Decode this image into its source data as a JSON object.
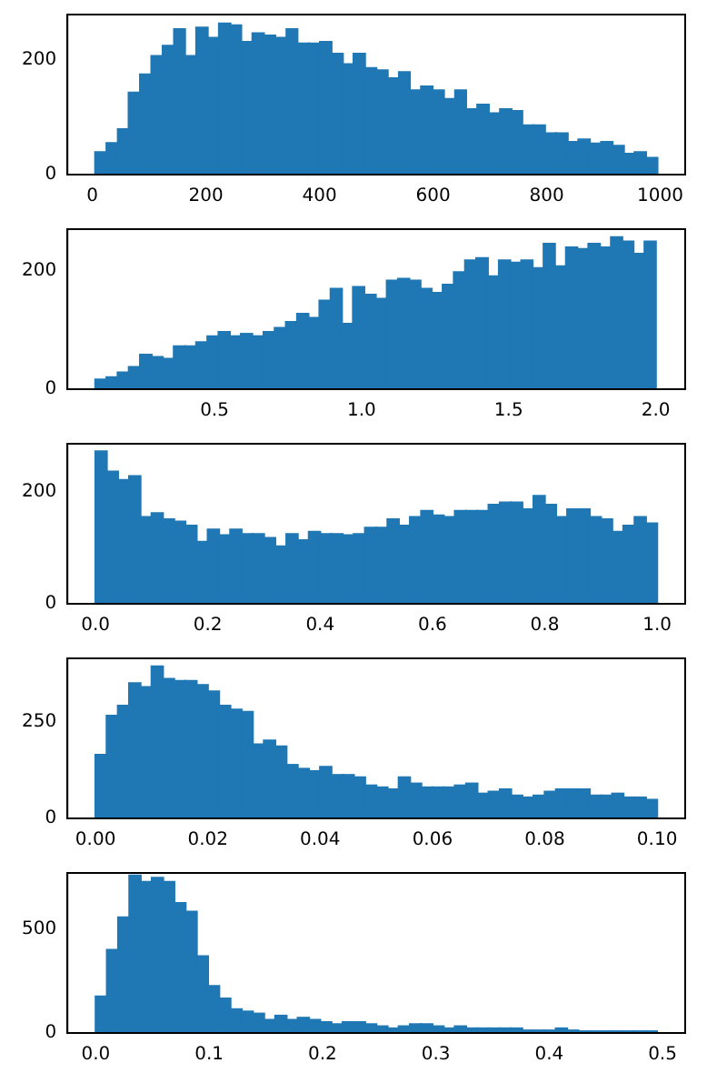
{
  "chart_data": [
    {
      "type": "histogram",
      "color": "#1f77b4",
      "xlim": [
        -44,
        1044
      ],
      "ylim": [
        0,
        280
      ],
      "xticks": [
        0,
        200,
        400,
        600,
        800,
        1000
      ],
      "yticks": [
        0,
        200
      ],
      "bins": [
        5,
        25,
        45,
        64,
        84,
        104,
        124,
        144,
        163,
        183,
        203,
        223,
        243,
        262,
        282,
        302,
        322,
        342,
        361,
        381,
        401,
        421,
        441,
        460,
        480,
        500,
        520,
        540,
        559,
        579,
        599,
        619,
        639,
        658,
        678,
        698,
        718,
        738,
        757,
        777,
        797,
        817,
        837,
        856,
        876,
        896,
        916,
        936,
        955,
        975,
        995
      ],
      "values": [
        40,
        56,
        80,
        144,
        176,
        208,
        226,
        255,
        208,
        258,
        240,
        265,
        262,
        233,
        248,
        244,
        240,
        255,
        230,
        230,
        233,
        212,
        194,
        212,
        187,
        183,
        169,
        180,
        148,
        155,
        148,
        133,
        148,
        115,
        123,
        108,
        115,
        112,
        87,
        87,
        73,
        73,
        58,
        62,
        55,
        58,
        51,
        37,
        40,
        30
      ]
    },
    {
      "type": "histogram",
      "color": "#1f77b4",
      "xlim": [
        0,
        2.1
      ],
      "ylim": [
        0,
        270
      ],
      "xticks": [
        0.5,
        {
          "value": 1,
          "label": "1.0"
        },
        1.5,
        {
          "value": 2,
          "label": "2.0"
        }
      ],
      "yticks": [
        0,
        200
      ],
      "bins": [
        0.095,
        0.133,
        0.171,
        0.209,
        0.247,
        0.286,
        0.324,
        0.362,
        0.4,
        0.438,
        0.476,
        0.514,
        0.552,
        0.59,
        0.628,
        0.667,
        0.705,
        0.743,
        0.781,
        0.819,
        0.857,
        0.895,
        0.933,
        0.971,
        1.009,
        1.048,
        1.086,
        1.124,
        1.162,
        1.2,
        1.238,
        1.276,
        1.314,
        1.352,
        1.39,
        1.429,
        1.467,
        1.505,
        1.543,
        1.581,
        1.619,
        1.657,
        1.695,
        1.733,
        1.771,
        1.81,
        1.848,
        1.886,
        1.924,
        1.962,
        2.0
      ],
      "values": [
        17,
        21,
        29,
        38,
        59,
        55,
        52,
        73,
        73,
        80,
        90,
        97,
        90,
        94,
        90,
        97,
        104,
        114,
        128,
        121,
        150,
        170,
        111,
        173,
        160,
        153,
        184,
        187,
        184,
        170,
        163,
        177,
        198,
        218,
        222,
        191,
        218,
        214,
        218,
        205,
        246,
        208,
        240,
        237,
        246,
        240,
        257,
        250,
        229,
        250
      ]
    },
    {
      "type": "histogram",
      "color": "#1f77b4",
      "xlim": [
        -0.05,
        1.05
      ],
      "ylim": [
        0,
        285
      ],
      "xticks": [
        {
          "value": 0,
          "label": "0.0"
        },
        0.2,
        0.4,
        0.6,
        0.8,
        {
          "value": 1,
          "label": "1.0"
        }
      ],
      "yticks": [
        0,
        200
      ],
      "bins": [
        0,
        0.02,
        0.04,
        0.06,
        0.08,
        0.1,
        0.12,
        0.14,
        0.16,
        0.18,
        0.2,
        0.22,
        0.24,
        0.26,
        0.28,
        0.3,
        0.32,
        0.34,
        0.36,
        0.38,
        0.4,
        0.42,
        0.44,
        0.46,
        0.48,
        0.5,
        0.52,
        0.54,
        0.56,
        0.58,
        0.6,
        0.62,
        0.64,
        0.66,
        0.68,
        0.7,
        0.72,
        0.74,
        0.76,
        0.78,
        0.8,
        0.82,
        0.84,
        0.86,
        0.88,
        0.9,
        0.92,
        0.94,
        0.96,
        0.98,
        1.0
      ],
      "values": [
        272,
        236,
        221,
        228,
        155,
        162,
        151,
        147,
        140,
        111,
        133,
        123,
        133,
        125,
        125,
        118,
        103,
        125,
        114,
        129,
        125,
        125,
        123,
        125,
        136,
        136,
        151,
        140,
        155,
        166,
        158,
        155,
        166,
        166,
        166,
        177,
        181,
        181,
        169,
        193,
        177,
        155,
        169,
        169,
        155,
        151,
        129,
        140,
        155,
        144
      ]
    },
    {
      "type": "histogram",
      "color": "#1f77b4",
      "xlim": [
        -0.005,
        0.105
      ],
      "ylim": [
        0,
        413
      ],
      "xticks": [
        {
          "value": 0,
          "label": "0.00"
        },
        {
          "value": 0.02,
          "label": "0.02"
        },
        {
          "value": 0.04,
          "label": "0.04"
        },
        {
          "value": 0.06,
          "label": "0.06"
        },
        {
          "value": 0.08,
          "label": "0.08"
        },
        {
          "value": 0.1,
          "label": "0.10"
        }
      ],
      "yticks": [
        0,
        250
      ],
      "bins": [
        0,
        0.002,
        0.004,
        0.006,
        0.008,
        0.01,
        0.012,
        0.014,
        0.016,
        0.018,
        0.02,
        0.022,
        0.024,
        0.026,
        0.028,
        0.03,
        0.032,
        0.034,
        0.036,
        0.038,
        0.04,
        0.042,
        0.044,
        0.046,
        0.048,
        0.05,
        0.052,
        0.054,
        0.056,
        0.058,
        0.06,
        0.062,
        0.064,
        0.066,
        0.068,
        0.07,
        0.072,
        0.074,
        0.076,
        0.078,
        0.08,
        0.082,
        0.084,
        0.086,
        0.088,
        0.09,
        0.092,
        0.094,
        0.096,
        0.098,
        0.1
      ],
      "values": [
        165,
        266,
        292,
        350,
        340,
        393,
        361,
        356,
        356,
        345,
        329,
        292,
        282,
        276,
        192,
        202,
        187,
        139,
        129,
        123,
        134,
        113,
        113,
        107,
        86,
        81,
        76,
        107,
        91,
        81,
        81,
        81,
        86,
        91,
        65,
        70,
        76,
        60,
        55,
        60,
        70,
        76,
        76,
        76,
        60,
        60,
        65,
        55,
        55,
        49
      ]
    },
    {
      "type": "histogram",
      "color": "#1f77b4",
      "xlim": [
        -0.025,
        0.52
      ],
      "ylim": [
        0,
        769
      ],
      "xticks": [
        {
          "value": 0,
          "label": "0.0"
        },
        0.1,
        0.2,
        0.3,
        0.4,
        0.5
      ],
      "yticks": [
        0,
        500
      ],
      "bins": [
        0,
        0.0099,
        0.0198,
        0.0297,
        0.0396,
        0.0495,
        0.0594,
        0.0693,
        0.0792,
        0.0891,
        0.099,
        0.1089,
        0.1188,
        0.1287,
        0.1386,
        0.1485,
        0.1584,
        0.1683,
        0.1782,
        0.1881,
        0.198,
        0.2079,
        0.2178,
        0.2277,
        0.2376,
        0.2475,
        0.2574,
        0.2673,
        0.2772,
        0.2871,
        0.297,
        0.3069,
        0.3168,
        0.3267,
        0.3366,
        0.3465,
        0.3564,
        0.3663,
        0.3762,
        0.3861,
        0.396,
        0.4059,
        0.4158,
        0.4257,
        0.4356,
        0.4455,
        0.4554,
        0.4653,
        0.4752,
        0.4851,
        0.495
      ],
      "values": [
        177,
        401,
        558,
        759,
        728,
        748,
        728,
        626,
        585,
        371,
        228,
        167,
        116,
        105,
        95,
        65,
        85,
        65,
        75,
        65,
        54,
        44,
        54,
        54,
        44,
        34,
        24,
        34,
        44,
        44,
        34,
        24,
        34,
        24,
        24,
        24,
        24,
        24,
        14,
        14,
        14,
        24,
        14,
        10,
        10,
        10,
        10,
        10,
        10,
        10
      ]
    }
  ]
}
